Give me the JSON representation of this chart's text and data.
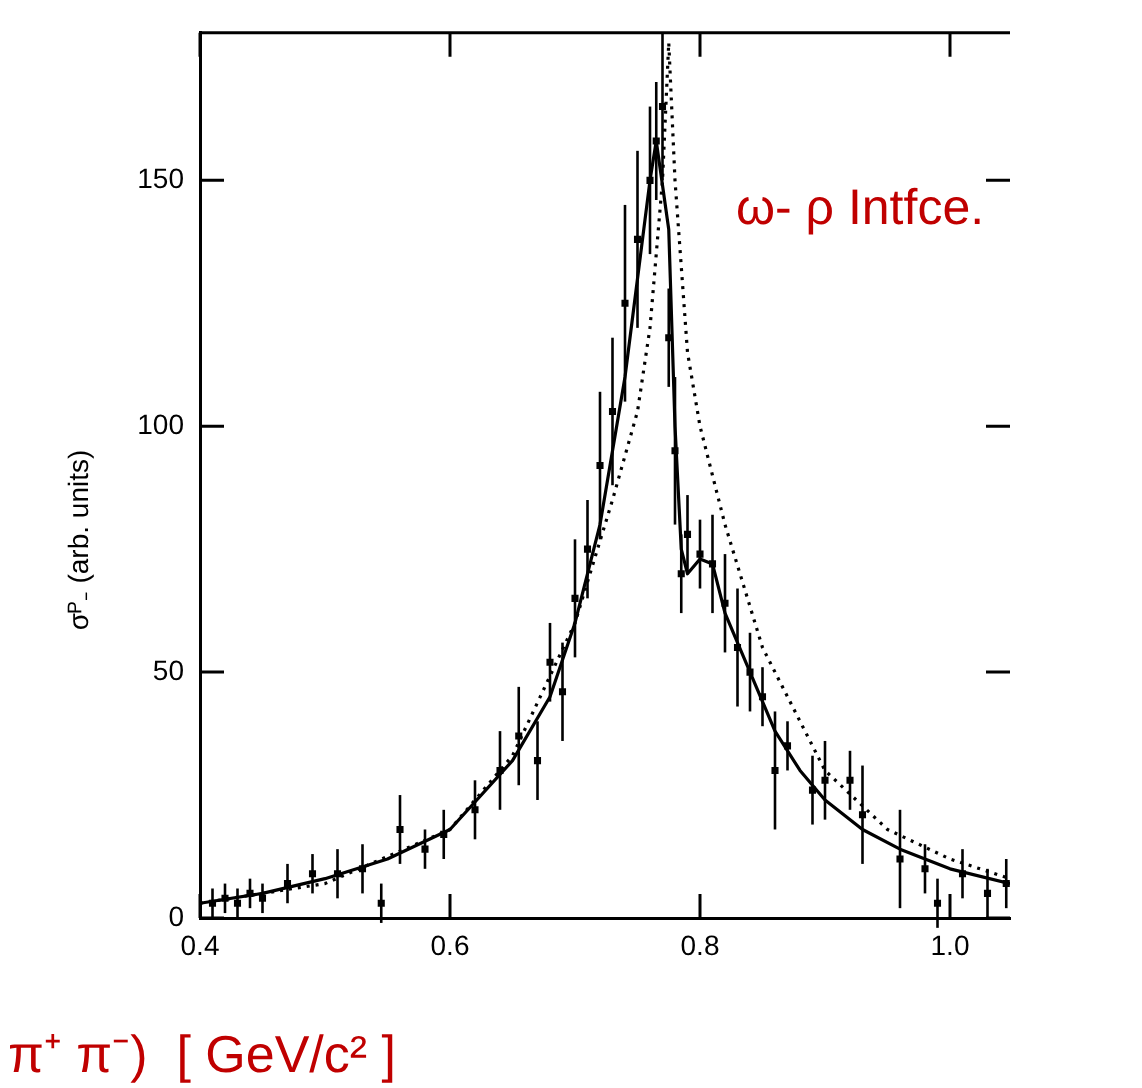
{
  "chart_data": {
    "type": "scatter",
    "xlabel": "π⁺ π⁻)  [ GeV/c² ]",
    "ylabel": "σᴾ₋ (arb. units)",
    "annotations": [
      "ω- ρ Intfce."
    ],
    "xlim": [
      0.4,
      1.048
    ],
    "ylim": [
      0,
      180
    ],
    "xticks": [
      0.4,
      0.6,
      0.8,
      {
        "value": 1.0,
        "label": "1.0"
      }
    ],
    "yticks": [
      0,
      50,
      100,
      150
    ],
    "grid": false,
    "legend": false,
    "series": [
      {
        "marker": "square",
        "color": "#000000",
        "x": [
          0.41,
          0.42,
          0.43,
          0.44,
          0.45,
          0.47,
          0.49,
          0.51,
          0.53,
          0.545,
          0.56,
          0.58,
          0.595,
          0.62,
          0.64,
          0.655,
          0.67,
          0.68,
          0.69,
          0.7,
          0.71,
          0.72,
          0.73,
          0.74,
          0.75,
          0.76,
          0.765,
          0.77,
          0.775,
          0.78,
          0.785,
          0.79,
          0.8,
          0.81,
          0.82,
          0.83,
          0.84,
          0.85,
          0.86,
          0.87,
          0.89,
          0.9,
          0.92,
          0.93,
          0.96,
          0.98,
          0.99,
          1.01,
          1.03,
          1.045
        ],
        "values": [
          3,
          4,
          3,
          5,
          4,
          7,
          9,
          9,
          10,
          3,
          18,
          14,
          17,
          22,
          30,
          37,
          32,
          52,
          46,
          65,
          75,
          92,
          103,
          125,
          138,
          150,
          158,
          165,
          118,
          95,
          70,
          78,
          74,
          72,
          64,
          55,
          50,
          45,
          30,
          35,
          26,
          28,
          28,
          21,
          12,
          10,
          3,
          9,
          5,
          7
        ],
        "errors": [
          3,
          3,
          3,
          3,
          3,
          4,
          4,
          5,
          5,
          4,
          7,
          4,
          5,
          6,
          8,
          10,
          8,
          8,
          10,
          12,
          10,
          15,
          15,
          20,
          18,
          15,
          12,
          15,
          10,
          15,
          8,
          8,
          7,
          10,
          10,
          12,
          8,
          6,
          12,
          5,
          7,
          8,
          6,
          10,
          10,
          5,
          5,
          5,
          5,
          5
        ]
      },
      {
        "type": "line",
        "color": "#000000",
        "line_style": "solid",
        "x": [
          0.4,
          0.45,
          0.5,
          0.55,
          0.6,
          0.65,
          0.68,
          0.7,
          0.72,
          0.74,
          0.75,
          0.76,
          0.765,
          0.775,
          0.78,
          0.785,
          0.79,
          0.8,
          0.81,
          0.82,
          0.84,
          0.86,
          0.88,
          0.9,
          0.93,
          0.96,
          1.0,
          1.048
        ],
        "values": [
          3,
          5,
          8,
          12,
          18,
          32,
          45,
          60,
          80,
          110,
          130,
          150,
          158,
          140,
          100,
          75,
          70,
          73,
          72,
          62,
          50,
          38,
          30,
          24,
          18,
          14,
          10,
          7
        ]
      },
      {
        "type": "line",
        "color": "#000000",
        "line_style": "dotted",
        "x": [
          0.4,
          0.5,
          0.6,
          0.65,
          0.7,
          0.73,
          0.75,
          0.76,
          0.77,
          0.775,
          0.78,
          0.79,
          0.8,
          0.82,
          0.85,
          0.9,
          0.95,
          1.0,
          1.048
        ],
        "values": [
          3,
          7,
          18,
          33,
          60,
          85,
          103,
          120,
          150,
          178,
          150,
          115,
          100,
          80,
          55,
          30,
          18,
          12,
          8
        ]
      }
    ]
  }
}
